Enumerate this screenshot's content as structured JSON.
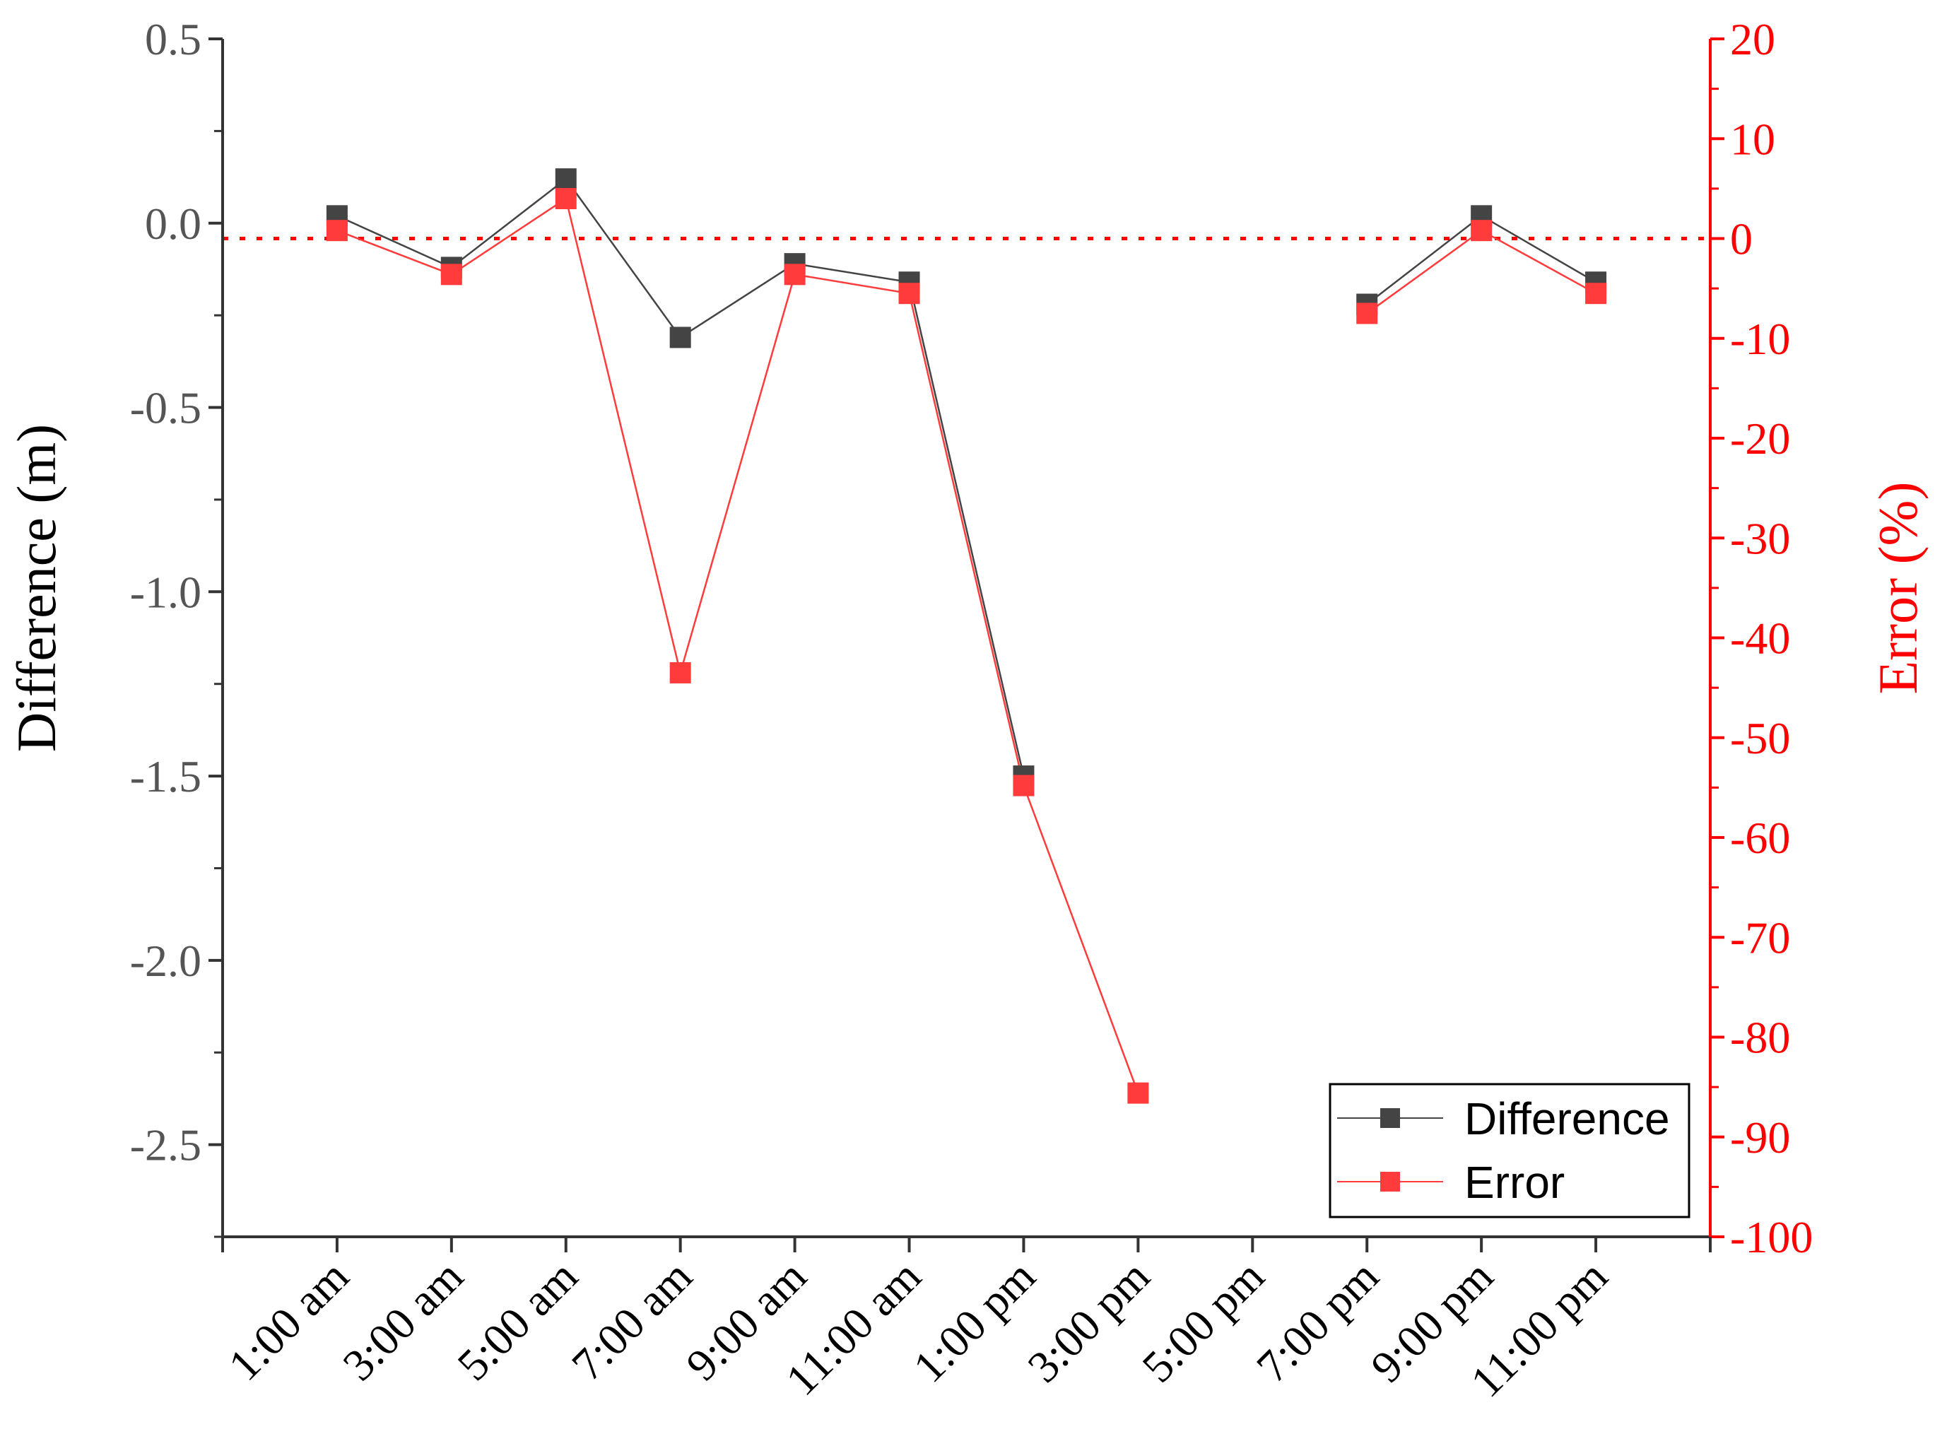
{
  "chart_data": {
    "type": "line",
    "title": "",
    "xlabel": "",
    "categories": [
      "1:00 am",
      "3:00 am",
      "5:00 am",
      "7:00 am",
      "9:00 am",
      "11:00 am",
      "1:00 pm",
      "3:00 pm",
      "5:00 pm",
      "7:00 pm",
      "9:00 pm",
      "11:00 pm"
    ],
    "left_axis": {
      "label": "Difference (m)",
      "ylim": [
        -2.75,
        0.5
      ],
      "ticks": [
        "0.5",
        "0.0",
        "-0.5",
        "-1.0",
        "-1.5",
        "-2.0",
        "-2.5"
      ],
      "tick_values": [
        0.5,
        0.0,
        -0.5,
        -1.0,
        -1.5,
        -2.0,
        -2.5
      ]
    },
    "right_axis": {
      "label": "Error (%)",
      "ylim": [
        -100,
        20
      ],
      "ticks": [
        "20",
        "10",
        "0",
        "-10",
        "-20",
        "-30",
        "-40",
        "-50",
        "-60",
        "-70",
        "-80",
        "-90",
        "-100"
      ],
      "tick_values": [
        20,
        10,
        0,
        -10,
        -20,
        -30,
        -40,
        -50,
        -60,
        -70,
        -80,
        -90,
        -100
      ],
      "color": "#ff0000"
    },
    "series": [
      {
        "name": "Difference",
        "axis": "left",
        "color": "#444444",
        "segments": [
          [
            [
              0,
              0.02
            ],
            [
              1,
              -0.12
            ],
            [
              2,
              0.12
            ],
            [
              3,
              -0.31
            ],
            [
              4,
              -0.11
            ],
            [
              5,
              -0.16
            ],
            [
              6,
              -1.5
            ]
          ],
          [
            [
              9,
              -0.22
            ],
            [
              10,
              0.02
            ],
            [
              11,
              -0.16
            ]
          ]
        ]
      },
      {
        "name": "Error",
        "axis": "right",
        "color": "#ff3b3b",
        "segments": [
          [
            [
              0,
              0.8
            ],
            [
              1,
              -3.6
            ],
            [
              2,
              4.0
            ],
            [
              3,
              -43.5
            ],
            [
              4,
              -3.6
            ],
            [
              5,
              -5.5
            ],
            [
              6,
              -54.8
            ],
            [
              7,
              -85.6
            ]
          ],
          [
            [
              9,
              -7.5
            ],
            [
              10,
              0.8
            ],
            [
              11,
              -5.5
            ]
          ]
        ]
      }
    ],
    "reference_line": {
      "axis": "right",
      "value": 0,
      "style": "dotted",
      "color": "#ff0000"
    },
    "legend": {
      "position": "bottom-right",
      "entries": [
        "Difference",
        "Error"
      ]
    }
  }
}
